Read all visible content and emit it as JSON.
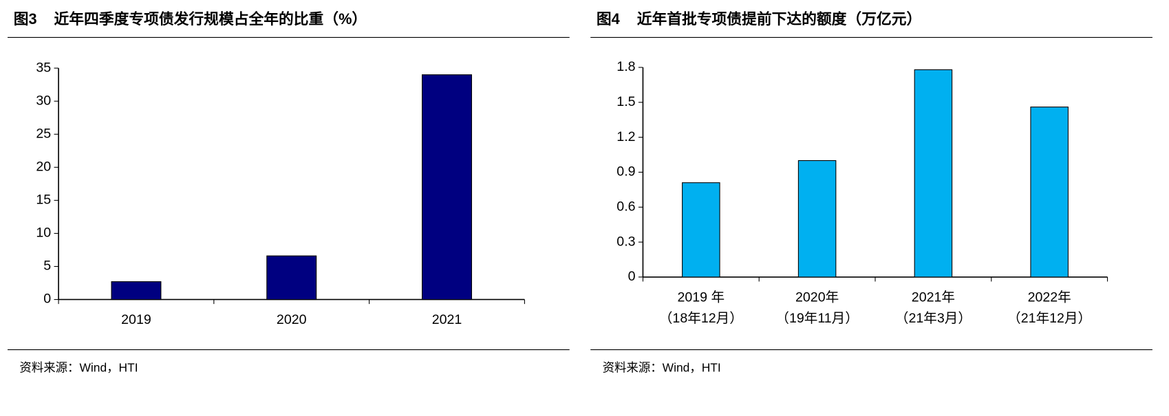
{
  "chart_data": [
    {
      "type": "bar",
      "figure": "图3",
      "title": "近年四季度专项债发行规模占全年的比重（%）",
      "categories": [
        "2019",
        "2020",
        "2021"
      ],
      "values": [
        2.7,
        6.6,
        34
      ],
      "color": "#000080",
      "ylim": [
        0,
        35
      ],
      "yticks": [
        0,
        5,
        10,
        15,
        20,
        25,
        30,
        35
      ],
      "source": "资料来源：Wind，HTI"
    },
    {
      "type": "bar",
      "figure": "图4",
      "title": "近年首批专项债提前下达的额度（万亿元）",
      "categories": [
        "2019 年",
        "2020年",
        "2021年",
        "2022年"
      ],
      "category_sublabels": [
        "（18年12月）",
        "（19年11月）",
        "（21年3月）",
        "（21年12月）"
      ],
      "values": [
        0.81,
        1.0,
        1.78,
        1.46
      ],
      "color": "#00b0f0",
      "ylim": [
        0,
        1.8
      ],
      "yticks": [
        0,
        0.3,
        0.6,
        0.9,
        1.2,
        1.5,
        1.8
      ],
      "source": "资料来源：Wind，HTI"
    }
  ]
}
